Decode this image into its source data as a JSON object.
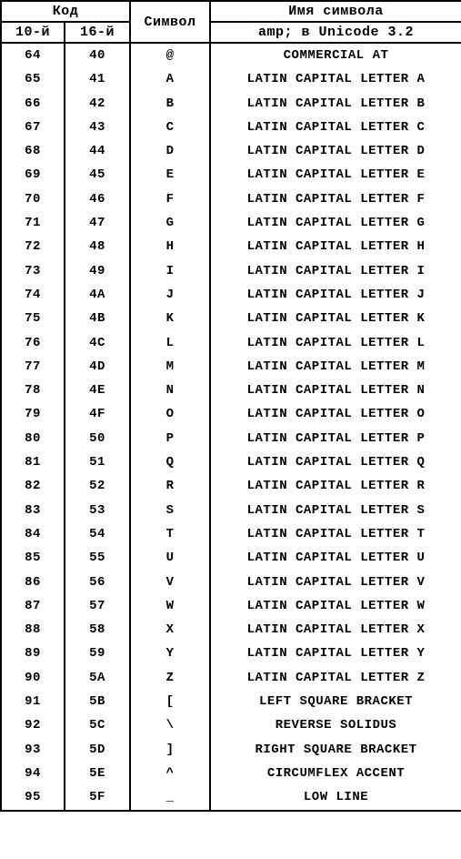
{
  "table": {
    "header": {
      "code_group": "Код",
      "symbol": "Символ",
      "name_group": "Имя символа",
      "dec": "10-й",
      "hex": "16-й",
      "name_sub": "amp; в Unicode 3.2"
    },
    "columns": {
      "dec_width": 70,
      "hex_width": 72,
      "sym_width": 88,
      "name_width": 277
    },
    "style": {
      "border_color": "#000000",
      "background_color": "#ffffff",
      "text_color": "#000000",
      "font_family": "Courier New, monospace",
      "header_fontsize": 15,
      "body_fontsize": 14,
      "font_weight": "bold"
    },
    "rows": [
      {
        "dec": "64",
        "hex": "40",
        "sym": "@",
        "name": "COMMERCIAL AT"
      },
      {
        "dec": "65",
        "hex": "41",
        "sym": "A",
        "name": "LATIN CAPITAL LETTER A"
      },
      {
        "dec": "66",
        "hex": "42",
        "sym": "B",
        "name": "LATIN CAPITAL LETTER B"
      },
      {
        "dec": "67",
        "hex": "43",
        "sym": "C",
        "name": "LATIN CAPITAL LETTER C"
      },
      {
        "dec": "68",
        "hex": "44",
        "sym": "D",
        "name": "LATIN CAPITAL LETTER D"
      },
      {
        "dec": "69",
        "hex": "45",
        "sym": "E",
        "name": "LATIN CAPITAL LETTER E"
      },
      {
        "dec": "70",
        "hex": "46",
        "sym": "F",
        "name": "LATIN CAPITAL LETTER F"
      },
      {
        "dec": "71",
        "hex": "47",
        "sym": "G",
        "name": "LATIN CAPITAL LETTER G"
      },
      {
        "dec": "72",
        "hex": "48",
        "sym": "H",
        "name": "LATIN CAPITAL LETTER H"
      },
      {
        "dec": "73",
        "hex": "49",
        "sym": "I",
        "name": "LATIN CAPITAL LETTER I"
      },
      {
        "dec": "74",
        "hex": "4A",
        "sym": "J",
        "name": "LATIN CAPITAL LETTER J"
      },
      {
        "dec": "75",
        "hex": "4B",
        "sym": "K",
        "name": "LATIN CAPITAL LETTER K"
      },
      {
        "dec": "76",
        "hex": "4C",
        "sym": "L",
        "name": "LATIN CAPITAL LETTER L"
      },
      {
        "dec": "77",
        "hex": "4D",
        "sym": "M",
        "name": "LATIN CAPITAL LETTER M"
      },
      {
        "dec": "78",
        "hex": "4E",
        "sym": "N",
        "name": "LATIN CAPITAL LETTER N"
      },
      {
        "dec": "79",
        "hex": "4F",
        "sym": "O",
        "name": "LATIN CAPITAL LETTER O"
      },
      {
        "dec": "80",
        "hex": "50",
        "sym": "P",
        "name": "LATIN CAPITAL LETTER P"
      },
      {
        "dec": "81",
        "hex": "51",
        "sym": "Q",
        "name": "LATIN CAPITAL LETTER Q"
      },
      {
        "dec": "82",
        "hex": "52",
        "sym": "R",
        "name": "LATIN CAPITAL LETTER R"
      },
      {
        "dec": "83",
        "hex": "53",
        "sym": "S",
        "name": "LATIN CAPITAL LETTER S"
      },
      {
        "dec": "84",
        "hex": "54",
        "sym": "T",
        "name": "LATIN CAPITAL LETTER T"
      },
      {
        "dec": "85",
        "hex": "55",
        "sym": "U",
        "name": "LATIN CAPITAL LETTER U"
      },
      {
        "dec": "86",
        "hex": "56",
        "sym": "V",
        "name": "LATIN CAPITAL LETTER V"
      },
      {
        "dec": "87",
        "hex": "57",
        "sym": "W",
        "name": "LATIN CAPITAL LETTER W"
      },
      {
        "dec": "88",
        "hex": "58",
        "sym": "X",
        "name": "LATIN CAPITAL LETTER X"
      },
      {
        "dec": "89",
        "hex": "59",
        "sym": "Y",
        "name": "LATIN CAPITAL LETTER Y"
      },
      {
        "dec": "90",
        "hex": "5A",
        "sym": "Z",
        "name": "LATIN CAPITAL LETTER Z"
      },
      {
        "dec": "91",
        "hex": "5B",
        "sym": "[",
        "name": "LEFT SQUARE BRACKET"
      },
      {
        "dec": "92",
        "hex": "5C",
        "sym": "\\",
        "name": "REVERSE SOLIDUS"
      },
      {
        "dec": "93",
        "hex": "5D",
        "sym": "]",
        "name": "RIGHT SQUARE BRACKET"
      },
      {
        "dec": "94",
        "hex": "5E",
        "sym": "^",
        "name": "CIRCUMFLEX ACCENT"
      },
      {
        "dec": "95",
        "hex": "5F",
        "sym": "_",
        "name": "LOW LINE"
      }
    ]
  }
}
